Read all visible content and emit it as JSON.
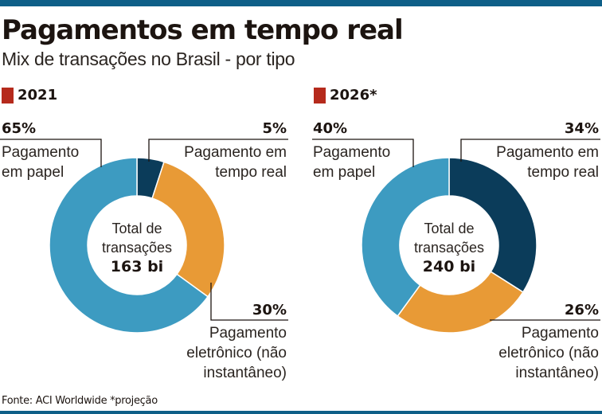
{
  "header": {
    "title": "Pagamentos em tempo real",
    "subtitle": "Mix de transações no Brasil - por tipo"
  },
  "colors": {
    "top_bar": "#0e5f88",
    "year_marker": "#b52a1c",
    "paper": "#3d9bc1",
    "real_time": "#0b3c5a",
    "electronic": "#e89a36"
  },
  "source": "Fonte: ACI Worldwide *projeção",
  "chart_data": [
    {
      "type": "pie",
      "variant": "donut",
      "title": "2021",
      "center_label": [
        "Total de",
        "transações"
      ],
      "center_value": "163 bi",
      "slices": [
        {
          "key": "real_time",
          "label": [
            "Pagamento em",
            "tempo real"
          ],
          "value": 5,
          "value_label": "5%"
        },
        {
          "key": "electronic",
          "label": [
            "Pagamento",
            "eletrônico (não",
            "instantâneo)"
          ],
          "value": 30,
          "value_label": "30%"
        },
        {
          "key": "paper",
          "label": [
            "Pagamento",
            "em papel"
          ],
          "value": 65,
          "value_label": "65%"
        }
      ]
    },
    {
      "type": "pie",
      "variant": "donut",
      "title": "2026*",
      "center_label": [
        "Total de",
        "transações"
      ],
      "center_value": "240 bi",
      "slices": [
        {
          "key": "real_time",
          "label": [
            "Pagamento em",
            "tempo real"
          ],
          "value": 34,
          "value_label": "34%"
        },
        {
          "key": "electronic",
          "label": [
            "Pagamento",
            "eletrônico (não",
            "instantâneo)"
          ],
          "value": 26,
          "value_label": "26%"
        },
        {
          "key": "paper",
          "label": [
            "Pagamento",
            "em papel"
          ],
          "value": 40,
          "value_label": "40%"
        }
      ]
    }
  ]
}
